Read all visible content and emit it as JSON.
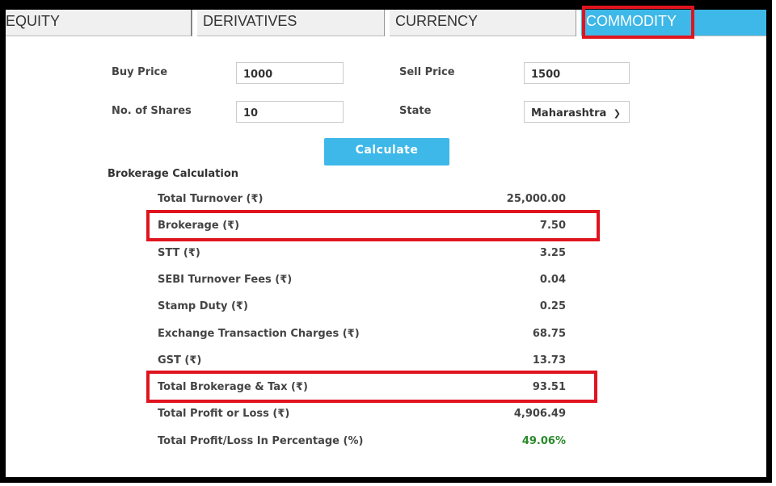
{
  "tabs": [
    {
      "label": "EQUITY"
    },
    {
      "label": "DERIVATIVES"
    },
    {
      "label": "CURRENCY"
    },
    {
      "label": "COMMODITY",
      "active": true
    }
  ],
  "form": {
    "buy_price_label": "Buy Price",
    "buy_price_value": "1000",
    "sell_price_label": "Sell Price",
    "sell_price_value": "1500",
    "shares_label": "No. of Shares",
    "shares_value": "10",
    "state_label": "State",
    "state_value": "Maharashtra"
  },
  "calculate_label": "Calculate",
  "brokerage": {
    "title": "Brokerage Calculation",
    "rows": [
      {
        "label": "Total Turnover (₹)",
        "value": "25,000.00"
      },
      {
        "label": "Brokerage (₹)",
        "value": "7.50"
      },
      {
        "label": "STT (₹)",
        "value": "3.25"
      },
      {
        "label": "SEBI Turnover Fees (₹)",
        "value": "0.04"
      },
      {
        "label": "Stamp Duty (₹)",
        "value": "0.25"
      },
      {
        "label": "Exchange Transaction Charges (₹)",
        "value": "68.75"
      },
      {
        "label": "GST (₹)",
        "value": "13.73"
      },
      {
        "label": "Total Brokerage & Tax (₹)",
        "value": "93.51"
      },
      {
        "label": "Total Profit or Loss (₹)",
        "value": "4,906.49"
      },
      {
        "label": "Total Profit/Loss In Percentage (%)",
        "value": "49.06%"
      }
    ]
  },
  "colors": {
    "accent": "#3db8e8",
    "highlight": "#e0141e",
    "profit": "#2a8a2a"
  }
}
